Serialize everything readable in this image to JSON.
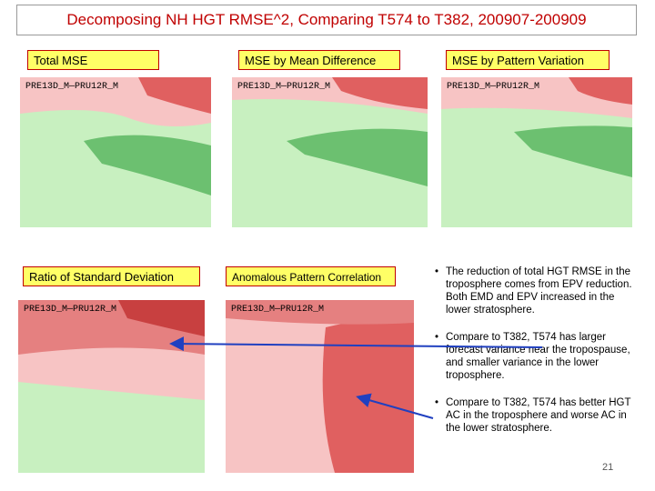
{
  "header": {
    "title": "Decomposing NH HGT RMSE^2,  Comparing T574 to T382, 200907-200909"
  },
  "panels": [
    {
      "label": "Total  MSE",
      "plot_title": "PRE13D_M—PRU12R_M"
    },
    {
      "label": "MSE by Mean Difference",
      "plot_title": "PRE13D_M—PRU12R_M"
    },
    {
      "label": "MSE by Pattern Variation",
      "plot_title": "PRE13D_M—PRU12R_M"
    },
    {
      "label": "Ratio of Standard Deviation",
      "plot_title": "PRE13D_M—PRU12R_M"
    },
    {
      "label": "Anomalous Pattern Correlation",
      "plot_title": "PRE13D_M—PRU12R_M"
    }
  ],
  "bullets": [
    "The reduction of total HGT RMSE in the troposphere comes from EPV reduction.  Both EMD and EPV increased in the lower stratosphere.",
    "Compare to T382, T574 has larger forecast variance near the tropospause, and smaller variance in the lower troposphere.",
    "Compare to T382, T574 has better HGT AC in the troposphere and worse AC in the lower stratosphere."
  ],
  "page_number": "21"
}
